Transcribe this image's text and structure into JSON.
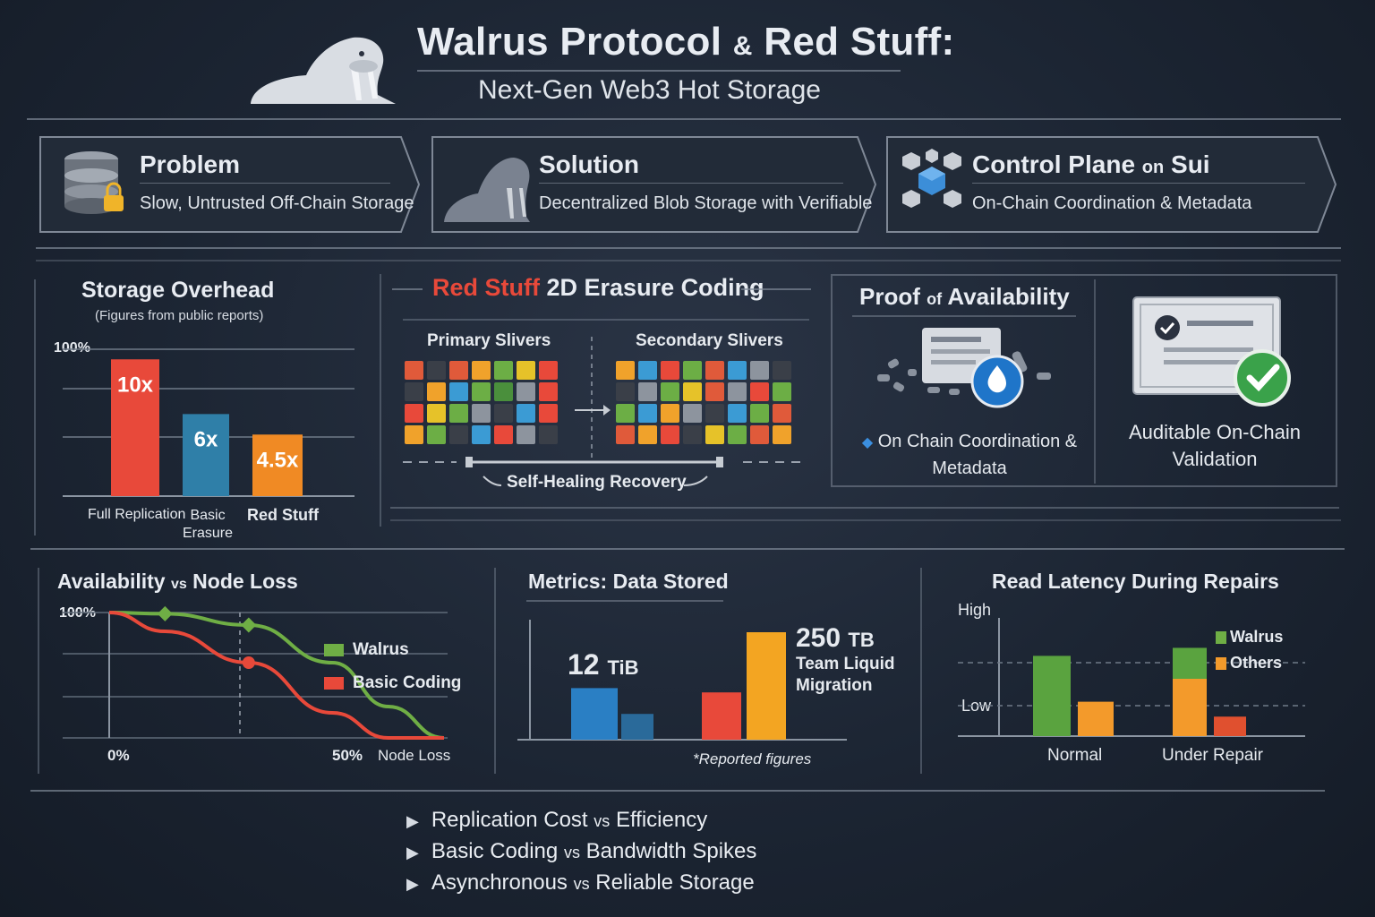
{
  "header": {
    "title_part1": "Walrus Protocol",
    "title_amp": "&",
    "title_part2": "Red Stuff:",
    "subtitle": "Next-Gen Web3 Hot Storage"
  },
  "cards": [
    {
      "title": "Problem",
      "subtitle": "Slow, Untrusted Off-Chain Storage",
      "icon": "database-lock-icon"
    },
    {
      "title": "Solution",
      "subtitle": "Decentralized Blob Storage with Verifiable",
      "icon": "walrus-icon"
    },
    {
      "title_a": "Control Plane",
      "title_b": "on",
      "title_c": "Sui",
      "subtitle": "On-Chain Coordination & Metadata",
      "icon": "cubes-network-icon"
    }
  ],
  "storage_overhead": {
    "title": "Storage Overhead",
    "note": "(Figures from public reports)",
    "axis_label": "100%",
    "chart_data": {
      "type": "bar",
      "categories": [
        "Full Replication",
        "Basic Erasure",
        "Red Stuff"
      ],
      "values": [
        10,
        6,
        4.5
      ],
      "value_labels": [
        "10x",
        "6x",
        "4.5x"
      ],
      "colors": [
        "#e8493a",
        "#2f7fa8",
        "#f08a24"
      ],
      "ylim": [
        0,
        11
      ]
    }
  },
  "erasure": {
    "title_red": "Red Stuff",
    "title_rest": "2D Erasure Coding",
    "primary_label": "Primary Slivers",
    "secondary_label": "Secondary Slivers",
    "recovery_label": "Self-Healing Recovery"
  },
  "proof": {
    "title_a": "Proof",
    "title_b": "of",
    "title_c": "Availability",
    "caption_line1": "On Chain Coordination &",
    "caption_line2": "Metadata",
    "validation_line1": "Auditable On-Chain",
    "validation_line2": "Validation"
  },
  "availability": {
    "title_a": "Availability",
    "title_b": "vs",
    "title_c": "Node Loss",
    "y_top": "100%",
    "x_left": "0%",
    "x_mid": "50%",
    "x_label": "Node Loss",
    "chart_data": {
      "type": "line",
      "x": [
        0,
        10,
        25,
        40,
        50,
        60
      ],
      "series": [
        {
          "name": "Walrus",
          "color": "#6fae45",
          "values": [
            100,
            99,
            90,
            60,
            25,
            0
          ]
        },
        {
          "name": "Basic Coding",
          "color": "#e8493a",
          "values": [
            100,
            85,
            60,
            20,
            0,
            0
          ]
        }
      ],
      "ylim": [
        0,
        100
      ]
    }
  },
  "metrics": {
    "title": "Metrics: Data Stored",
    "label_small_num": "12",
    "label_small_unit": "TiB",
    "label_big_num": "250",
    "label_big_unit": "TB",
    "label_big_line1": "Team Liquid",
    "label_big_line2": "Migration",
    "footnote": "*Reported figures",
    "chart_data": {
      "type": "bar",
      "values": [
        12,
        6,
        11,
        25
      ],
      "colors": [
        "#2a7fc4",
        "#2a6a9a",
        "#e8493a",
        "#f3a522"
      ]
    }
  },
  "latency": {
    "title": "Read Latency During Repairs",
    "y_high": "High",
    "y_low": "Low",
    "legend": [
      {
        "name": "Walrus",
        "color": "#6fae45"
      },
      {
        "name": "Others",
        "color": "#f39a2b"
      }
    ],
    "chart_data": {
      "type": "bar",
      "categories": [
        "Normal",
        "Under Repair"
      ],
      "series": [
        {
          "name": "Walrus",
          "values": [
            0.7,
            0.27
          ]
        },
        {
          "name": "Others",
          "values": [
            0.3,
            0.5
          ]
        }
      ],
      "extra_small_bar": 0.17
    }
  },
  "bullets": [
    {
      "a": "Replication Cost",
      "b": "vs",
      "c": "Efficiency"
    },
    {
      "a": "Basic Coding",
      "b": "vs",
      "c": "Bandwidth Spikes"
    },
    {
      "a": "Asynchronous",
      "b": "vs",
      "c": "Reliable Storage"
    }
  ]
}
